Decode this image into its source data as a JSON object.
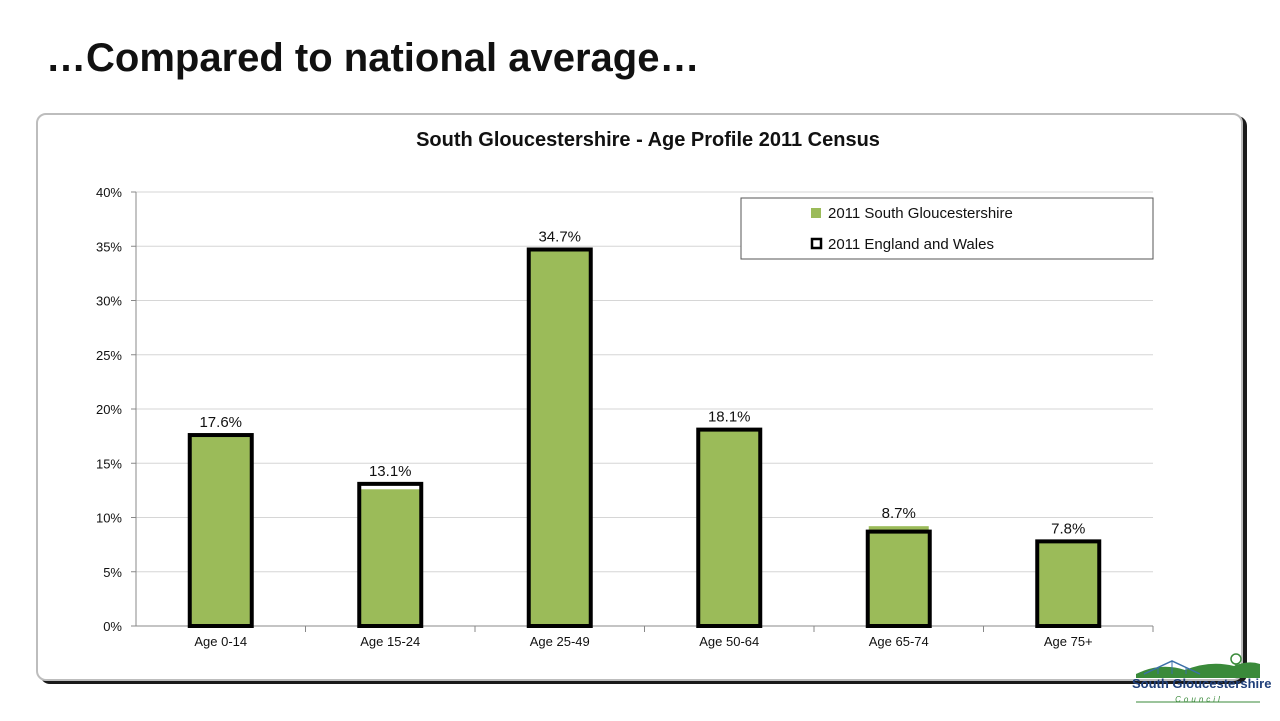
{
  "slide": {
    "title": "…Compared to national average…"
  },
  "chart_data": {
    "type": "bar",
    "title": "South Gloucestershire - Age Profile 2011 Census",
    "categories": [
      "Age 0-14",
      "Age 15-24",
      "Age 25-49",
      "Age 50-64",
      "Age 65-74",
      "Age 75+"
    ],
    "series": [
      {
        "name": "2011 South Gloucestershire",
        "values": [
          17.6,
          12.6,
          34.7,
          18.1,
          9.2,
          7.8
        ],
        "color": "#9bbb59"
      },
      {
        "name": "2011 England and Wales",
        "values": [
          17.6,
          13.1,
          34.7,
          18.1,
          8.7,
          7.8
        ],
        "color": "#000000"
      }
    ],
    "data_labels": [
      "17.6%",
      "13.1%",
      "34.7%",
      "18.1%",
      "8.7%",
      "7.8%"
    ],
    "yticks": [
      "0%",
      "5%",
      "10%",
      "15%",
      "20%",
      "25%",
      "30%",
      "35%",
      "40%"
    ],
    "ylim": [
      0,
      40
    ],
    "grid": true,
    "legend_position": "top-right",
    "xlabel": "",
    "ylabel": ""
  },
  "logo": {
    "name": "South Gloucestershire",
    "subtitle": "Council"
  }
}
